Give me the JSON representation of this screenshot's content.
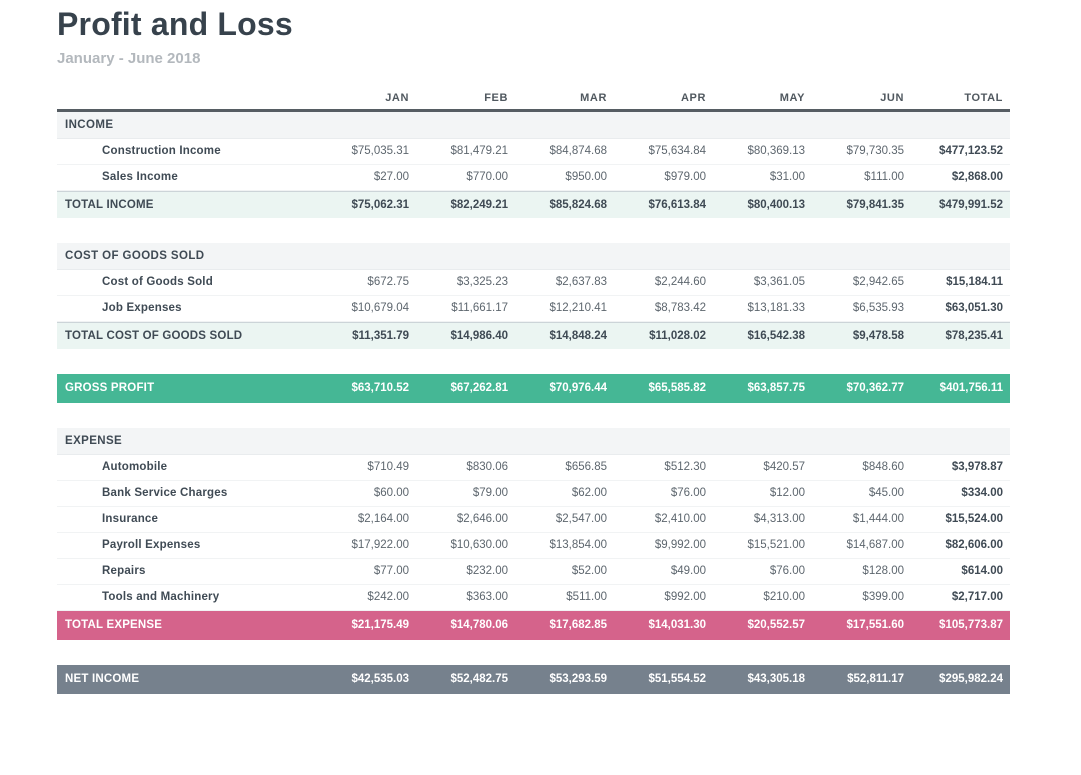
{
  "report": {
    "title": "Profit and Loss",
    "subtitle": "January - June 2018",
    "columns": [
      "JAN",
      "FEB",
      "MAR",
      "APR",
      "MAY",
      "JUN",
      "TOTAL"
    ],
    "band_colors": {
      "green": "#45b795",
      "pink": "#d5638b",
      "gray": "#76818d"
    },
    "rows": [
      {
        "type": "section",
        "name": "income-section-header",
        "label": "INCOME"
      },
      {
        "type": "account",
        "name": "construction-income-row",
        "label": "Construction Income",
        "values": [
          "$75,035.31",
          "$81,479.21",
          "$84,874.68",
          "$75,634.84",
          "$80,369.13",
          "$79,730.35",
          "$477,123.52"
        ]
      },
      {
        "type": "account",
        "name": "sales-income-row",
        "label": "Sales Income",
        "values": [
          "$27.00",
          "$770.00",
          "$950.00",
          "$979.00",
          "$31.00",
          "$111.00",
          "$2,868.00"
        ]
      },
      {
        "type": "total",
        "name": "total-income-row",
        "label": "TOTAL INCOME",
        "values": [
          "$75,062.31",
          "$82,249.21",
          "$85,824.68",
          "$76,613.84",
          "$80,400.13",
          "$79,841.35",
          "$479,991.52"
        ]
      },
      {
        "type": "spacer",
        "name": "spacer-row"
      },
      {
        "type": "section",
        "name": "cogs-section-header",
        "label": "COST OF GOODS SOLD"
      },
      {
        "type": "account",
        "name": "cost-of-goods-sold-row",
        "label": "Cost of Goods Sold",
        "values": [
          "$672.75",
          "$3,325.23",
          "$2,637.83",
          "$2,244.60",
          "$3,361.05",
          "$2,942.65",
          "$15,184.11"
        ]
      },
      {
        "type": "account",
        "name": "job-expenses-row",
        "label": "Job Expenses",
        "values": [
          "$10,679.04",
          "$11,661.17",
          "$12,210.41",
          "$8,783.42",
          "$13,181.33",
          "$6,535.93",
          "$63,051.30"
        ]
      },
      {
        "type": "total",
        "name": "total-cogs-row",
        "label": "TOTAL COST OF GOODS SOLD",
        "values": [
          "$11,351.79",
          "$14,986.40",
          "$14,848.24",
          "$11,028.02",
          "$16,542.38",
          "$9,478.58",
          "$78,235.41"
        ]
      },
      {
        "type": "spacer",
        "name": "spacer-row"
      },
      {
        "type": "band",
        "color": "green",
        "name": "gross-profit-row",
        "label": "GROSS PROFIT",
        "values": [
          "$63,710.52",
          "$67,262.81",
          "$70,976.44",
          "$65,585.82",
          "$63,857.75",
          "$70,362.77",
          "$401,756.11"
        ]
      },
      {
        "type": "spacer",
        "name": "spacer-row"
      },
      {
        "type": "section",
        "name": "expense-section-header",
        "label": "EXPENSE"
      },
      {
        "type": "account",
        "name": "automobile-row",
        "label": "Automobile",
        "values": [
          "$710.49",
          "$830.06",
          "$656.85",
          "$512.30",
          "$420.57",
          "$848.60",
          "$3,978.87"
        ]
      },
      {
        "type": "account",
        "name": "bank-service-charges-row",
        "label": "Bank Service Charges",
        "values": [
          "$60.00",
          "$79.00",
          "$62.00",
          "$76.00",
          "$12.00",
          "$45.00",
          "$334.00"
        ]
      },
      {
        "type": "account",
        "name": "insurance-row",
        "label": "Insurance",
        "values": [
          "$2,164.00",
          "$2,646.00",
          "$2,547.00",
          "$2,410.00",
          "$4,313.00",
          "$1,444.00",
          "$15,524.00"
        ]
      },
      {
        "type": "account",
        "name": "payroll-expenses-row",
        "label": "Payroll Expenses",
        "values": [
          "$17,922.00",
          "$10,630.00",
          "$13,854.00",
          "$9,992.00",
          "$15,521.00",
          "$14,687.00",
          "$82,606.00"
        ]
      },
      {
        "type": "account",
        "name": "repairs-row",
        "label": "Repairs",
        "values": [
          "$77.00",
          "$232.00",
          "$52.00",
          "$49.00",
          "$76.00",
          "$128.00",
          "$614.00"
        ]
      },
      {
        "type": "account",
        "name": "tools-and-machinery-row",
        "label": "Tools and Machinery",
        "values": [
          "$242.00",
          "$363.00",
          "$511.00",
          "$992.00",
          "$210.00",
          "$399.00",
          "$2,717.00"
        ]
      },
      {
        "type": "band",
        "color": "pink",
        "name": "total-expense-row",
        "label": "TOTAL EXPENSE",
        "values": [
          "$21,175.49",
          "$14,780.06",
          "$17,682.85",
          "$14,031.30",
          "$20,552.57",
          "$17,551.60",
          "$105,773.87"
        ]
      },
      {
        "type": "spacer",
        "name": "spacer-row"
      },
      {
        "type": "band",
        "color": "gray",
        "name": "net-income-row",
        "label": "NET INCOME",
        "values": [
          "$42,535.03",
          "$52,482.75",
          "$53,293.59",
          "$51,554.52",
          "$43,305.18",
          "$52,811.17",
          "$295,982.24"
        ]
      }
    ]
  }
}
